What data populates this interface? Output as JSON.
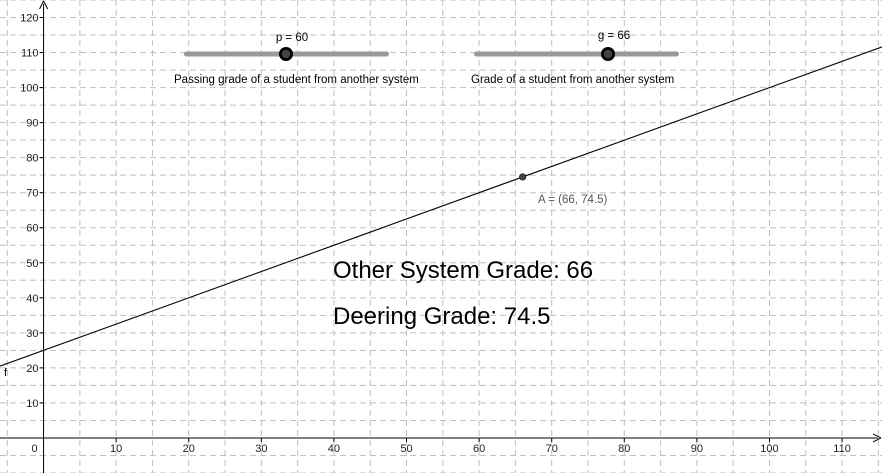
{
  "graph": {
    "x_ticks": [
      0,
      10,
      20,
      30,
      40,
      50,
      60,
      70,
      80,
      90,
      100,
      110
    ],
    "y_ticks": [
      10,
      20,
      30,
      40,
      50,
      60,
      70,
      80,
      90,
      100,
      110,
      120
    ],
    "x_range": [
      -6,
      115.5
    ],
    "y_range": [
      -10,
      125
    ],
    "grid": true,
    "function": {
      "name": "f",
      "slope": 0.75,
      "intercept": 25
    }
  },
  "sliders": [
    {
      "id": "p",
      "label": "p = 60",
      "value": 60,
      "min": 0,
      "max": 100,
      "caption": "Passing grade of  a student from another system"
    },
    {
      "id": "g",
      "label": "g = 66",
      "value": 66,
      "min": 0,
      "max": 100,
      "caption": "Grade of  a student from another system"
    }
  ],
  "point": {
    "name": "A",
    "x": 66,
    "y": 74.5,
    "label": "A = (66, 74.5)"
  },
  "texts": {
    "other_system": "Other System Grade: 66",
    "deering": "Deering Grade: 74.5"
  },
  "colors": {
    "grid": "#c0c0c0",
    "axis": "#000000",
    "line": "#000000",
    "slider_track": "#999999",
    "slider_knob": "#000000",
    "point": "#444444"
  }
}
